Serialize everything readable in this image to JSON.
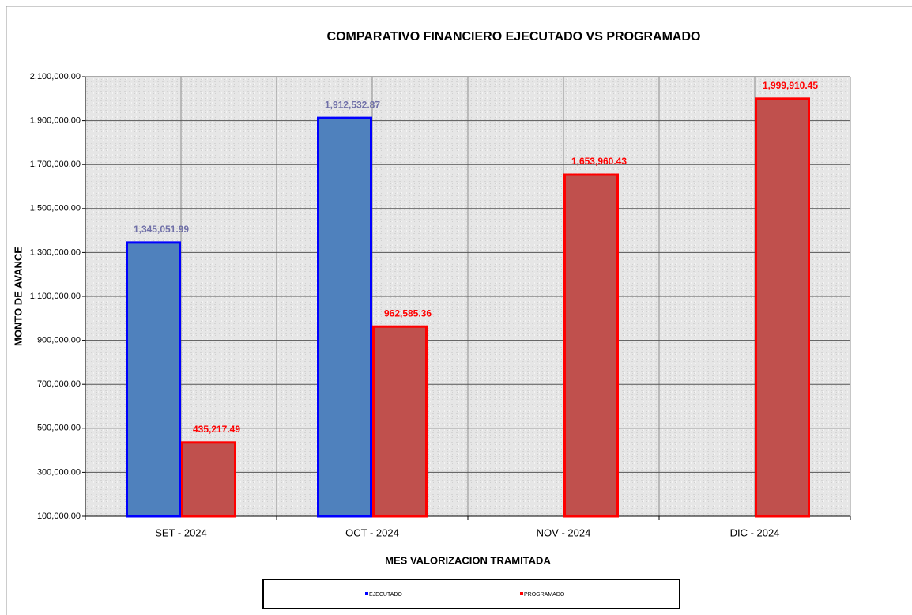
{
  "chart_data": {
    "type": "bar",
    "title": "COMPARATIVO FINANCIERO EJECUTADO VS PROGRAMADO",
    "x_label": "MES VALORIZACION TRAMITADA",
    "y_label": "MONTO DE AVANCE",
    "categories": [
      "SET - 2024",
      "OCT - 2024",
      "NOV - 2024",
      "DIC - 2024"
    ],
    "series": [
      {
        "name": "EJECUTADO",
        "color": "#4f81bd",
        "edge_color": "#0000ff",
        "label_color": "#7070a8",
        "values": [
          1345051.99,
          1912532.87,
          null,
          null
        ],
        "value_labels": [
          "1,345,051.99",
          "1,912,532.87",
          null,
          null
        ]
      },
      {
        "name": "PROGRAMADO",
        "color": "#c0504d",
        "edge_color": "#ff0000",
        "label_color": "#ff0000",
        "values": [
          435217.49,
          962585.36,
          1653960.43,
          1999910.45
        ],
        "value_labels": [
          "435,217.49",
          "962,585.36",
          "1,653,960.43",
          "1,999,910.45"
        ]
      }
    ],
    "ylim": [
      100000,
      2100000
    ],
    "yticks": [
      {
        "value": 100000,
        "label": "100,000.00"
      },
      {
        "value": 300000,
        "label": "300,000.00"
      },
      {
        "value": 500000,
        "label": "500,000.00"
      },
      {
        "value": 700000,
        "label": "700,000.00"
      },
      {
        "value": 900000,
        "label": "900,000.00"
      },
      {
        "value": 1100000,
        "label": "1,100,000.00"
      },
      {
        "value": 1300000,
        "label": "1,300,000.00"
      },
      {
        "value": 1500000,
        "label": "1,500,000.00"
      },
      {
        "value": 1700000,
        "label": "1,700,000.00"
      },
      {
        "value": 1900000,
        "label": "1,900,000.00"
      },
      {
        "value": 2100000,
        "label": "2,100,000.00"
      }
    ],
    "grid": true,
    "legend": "bottom"
  }
}
